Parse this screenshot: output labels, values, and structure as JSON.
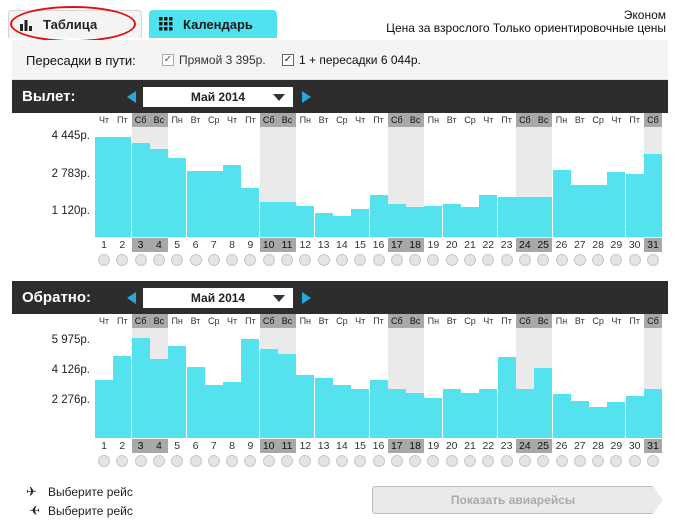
{
  "tabs": {
    "table_label": "Таблица",
    "calendar_label": "Календарь"
  },
  "header": {
    "class_label": "Эконом",
    "note": "Цена за взрослого Только ориентировочные цены"
  },
  "filters": {
    "label": "Пересадки в пути:",
    "direct": {
      "label": "Прямой 3 395р.",
      "checked": true,
      "enabled": false
    },
    "transfers": {
      "label": "1 + пересадки 6 044р.",
      "checked": true,
      "enabled": true
    }
  },
  "weekdays": [
    "Чт",
    "Пт",
    "Сб",
    "Вс",
    "Пн",
    "Вт",
    "Ср",
    "Чт",
    "Пт",
    "Сб",
    "Вс",
    "Пн",
    "Вт",
    "Ср",
    "Чт",
    "Пт",
    "Сб",
    "Вс",
    "Пн",
    "Вт",
    "Ср",
    "Чт",
    "Пт",
    "Сб",
    "Вс",
    "Пн",
    "Вт",
    "Ср",
    "Чт",
    "Пт",
    "Сб"
  ],
  "days": [
    "1",
    "2",
    "3",
    "4",
    "5",
    "6",
    "7",
    "8",
    "9",
    "10",
    "11",
    "12",
    "13",
    "14",
    "15",
    "16",
    "17",
    "18",
    "19",
    "20",
    "21",
    "22",
    "23",
    "24",
    "25",
    "26",
    "27",
    "28",
    "29",
    "30",
    "31"
  ],
  "weekend_days": [
    3,
    4,
    10,
    11,
    17,
    18,
    24,
    25,
    31
  ],
  "outbound": {
    "label": "Вылет:",
    "month": "Май 2014",
    "ticks": [
      "4 445р.",
      "2 783р.",
      "1 120р."
    ],
    "tick_values": [
      4445,
      2783,
      1120
    ],
    "chart_data": {
      "type": "bar",
      "x": [
        1,
        2,
        3,
        4,
        5,
        6,
        7,
        8,
        9,
        10,
        11,
        12,
        13,
        14,
        15,
        16,
        17,
        18,
        19,
        20,
        21,
        22,
        23,
        24,
        25,
        26,
        27,
        28,
        29,
        30,
        31
      ],
      "values": [
        4445,
        4445,
        4200,
        3900,
        3500,
        2950,
        2950,
        3200,
        2200,
        1580,
        1580,
        1400,
        1050,
        950,
        1250,
        1850,
        1450,
        1320,
        1380,
        1480,
        1320,
        1880,
        1800,
        1800,
        1800,
        3000,
        2300,
        2300,
        2900,
        2800,
        3700
      ],
      "ylabel": "",
      "ylim": [
        0,
        4900
      ]
    }
  },
  "inbound": {
    "label": "Обратно:",
    "month": "Май 2014",
    "ticks": [
      "5 975р.",
      "4 126р.",
      "2 276р."
    ],
    "tick_values": [
      5975,
      4126,
      2276
    ],
    "chart_data": {
      "type": "bar",
      "x": [
        1,
        2,
        3,
        4,
        5,
        6,
        7,
        8,
        9,
        10,
        11,
        12,
        13,
        14,
        15,
        16,
        17,
        18,
        19,
        20,
        21,
        22,
        23,
        24,
        25,
        26,
        27,
        28,
        29,
        30,
        31
      ],
      "values": [
        3600,
        5100,
        6200,
        4900,
        5700,
        4400,
        3300,
        3450,
        6100,
        5500,
        5200,
        3900,
        3700,
        3300,
        3000,
        3600,
        3000,
        2800,
        2500,
        3000,
        2800,
        3000,
        5000,
        3000,
        4300,
        2700,
        2300,
        1900,
        2200,
        2600,
        3000
      ],
      "ylabel": "",
      "ylim": [
        0,
        6800
      ]
    }
  },
  "footer": {
    "outbound_hint": "Выберите рейс",
    "inbound_hint": "Выберите рейс",
    "show_button": "Показать авиарейсы"
  },
  "colors": {
    "bar": "#54e3ee",
    "calendar_tab": "#4fe3f0",
    "header_bg": "#2d2d2d",
    "arrow": "#2aa7d8",
    "highlight_ring": "#e01010"
  }
}
